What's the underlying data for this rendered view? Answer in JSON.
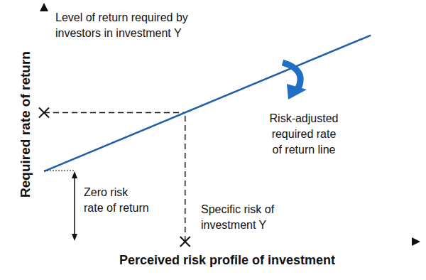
{
  "chart_data": {
    "type": "line",
    "x": [
      0,
      88
    ],
    "values": [
      30,
      88
    ],
    "color": "#1f5fa8",
    "xlim": [
      0,
      100
    ],
    "ylim": [
      0,
      100
    ],
    "xticks": [],
    "yticks": [],
    "tick_labels": false,
    "grid": false,
    "x_label": "Perceived risk profile of investment",
    "y_label": "Required rate of return",
    "point": {
      "x": 38,
      "y": 55
    },
    "annotations": {
      "required_return": [
        "Level of return required by",
        "investors in investment Y"
      ],
      "line_label": [
        "Risk-adjusted",
        "required rate",
        "of return line"
      ],
      "zero_risk": [
        "Zero risk",
        "rate of return"
      ],
      "specific_risk": [
        "Specific risk of",
        "investment Y"
      ]
    }
  }
}
